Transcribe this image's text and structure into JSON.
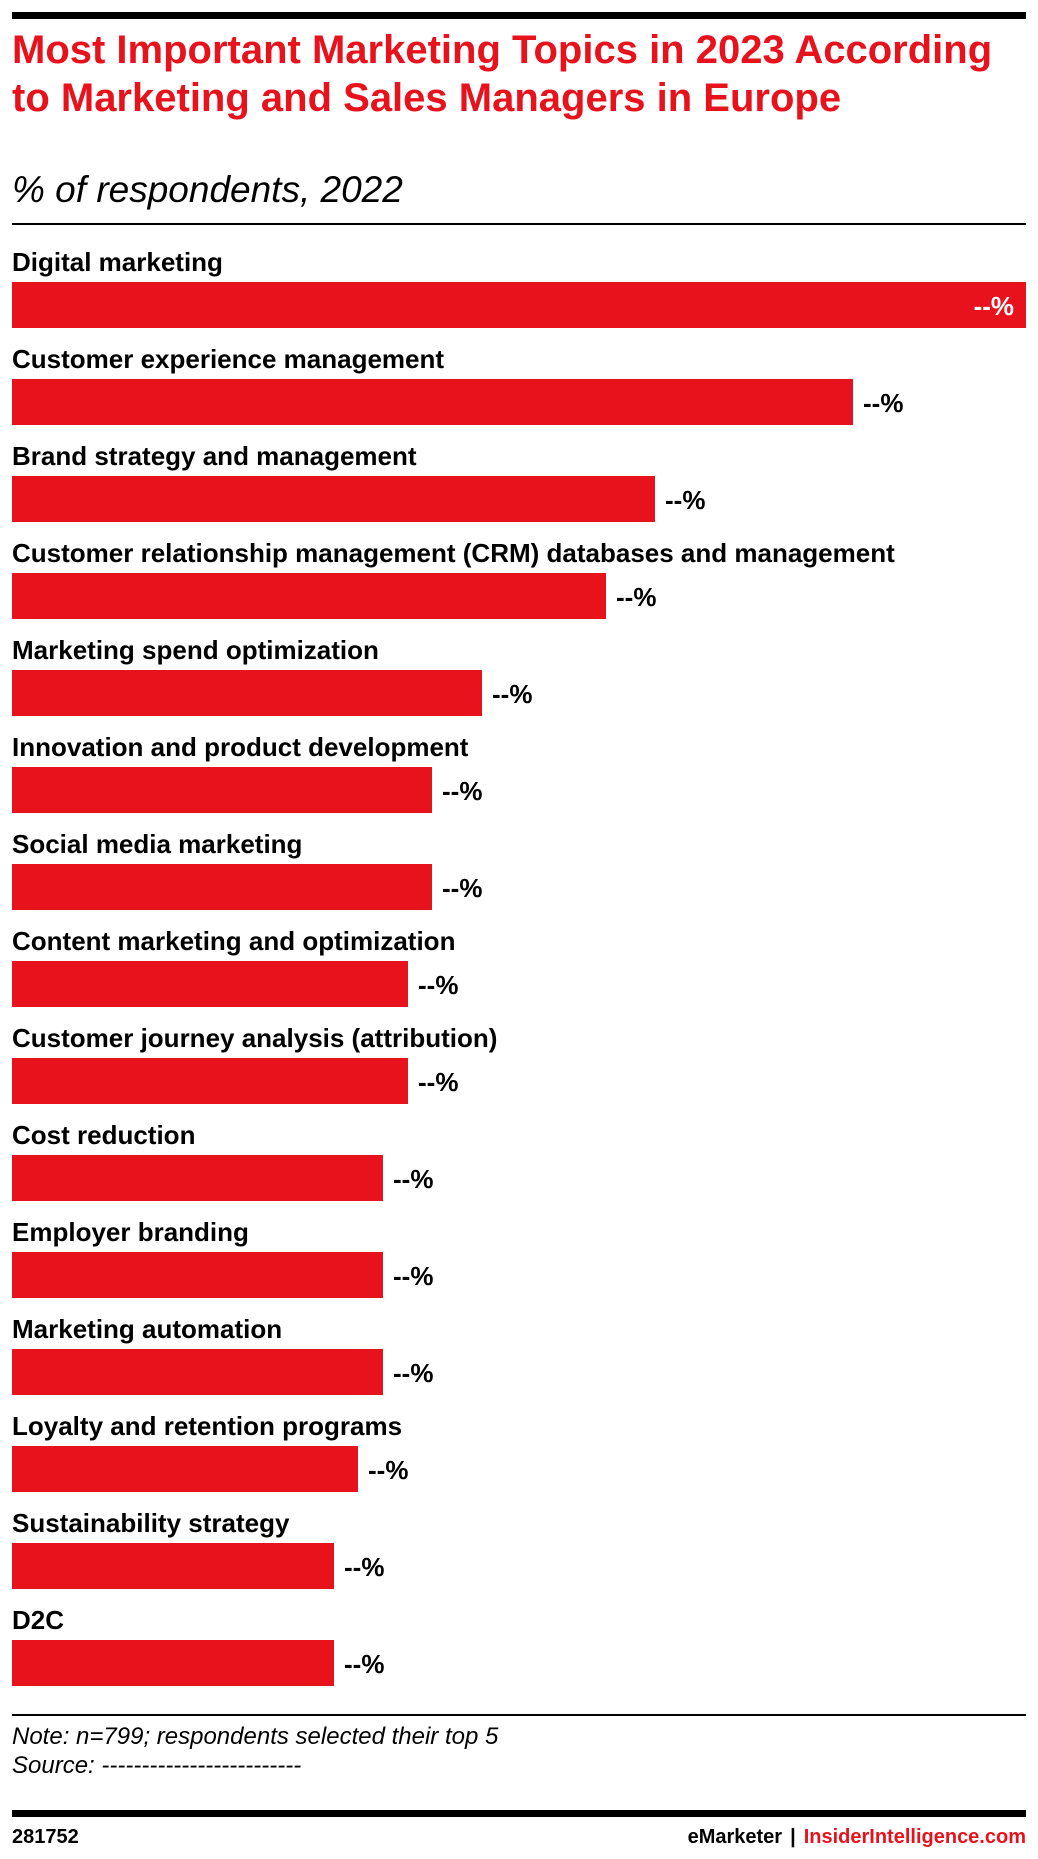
{
  "title": "Most Important Marketing Topics in 2023 According to Marketing and Sales Managers in Europe",
  "subtitle": "% of respondents, 2022",
  "note_line": "Note: n=799; respondents selected their top 5",
  "source_line": "Source: -------------------------",
  "footer": {
    "chart_id": "281752",
    "brand": "eMarketer",
    "separator": "|",
    "site": "InsiderIntelligence.com"
  },
  "colors": {
    "accent": "#e8121d",
    "text": "#000000",
    "bar_value_inside": "#ffffff"
  },
  "chart_data": {
    "type": "bar",
    "orientation": "horizontal",
    "title": "Most Important Marketing Topics in 2023 According to Marketing and Sales Managers in Europe",
    "subtitle": "% of respondents, 2022",
    "categories": [
      "Digital marketing",
      "Customer experience management",
      "Brand strategy and management",
      "Customer relationship management (CRM) databases and management",
      "Marketing spend optimization",
      "Innovation and product development",
      "Social media marketing",
      "Content marketing and optimization",
      "Customer journey analysis (attribution)",
      "Cost reduction",
      "Employer branding",
      "Marketing automation",
      "Loyalty and retention programs",
      "Sustainability strategy",
      "D2C"
    ],
    "values": [
      41,
      34,
      26,
      24,
      19,
      17,
      17,
      16,
      16,
      15,
      15,
      15,
      14,
      13,
      13
    ],
    "value_labels": [
      "--%",
      "--%",
      "--%",
      "--%",
      "--%",
      "--%",
      "--%",
      "--%",
      "--%",
      "--%",
      "--%",
      "--%",
      "--%",
      "--%",
      "--%"
    ],
    "xlim": [
      0,
      41
    ],
    "grid": false,
    "legend": "none",
    "bar_color": "#e8121d"
  }
}
